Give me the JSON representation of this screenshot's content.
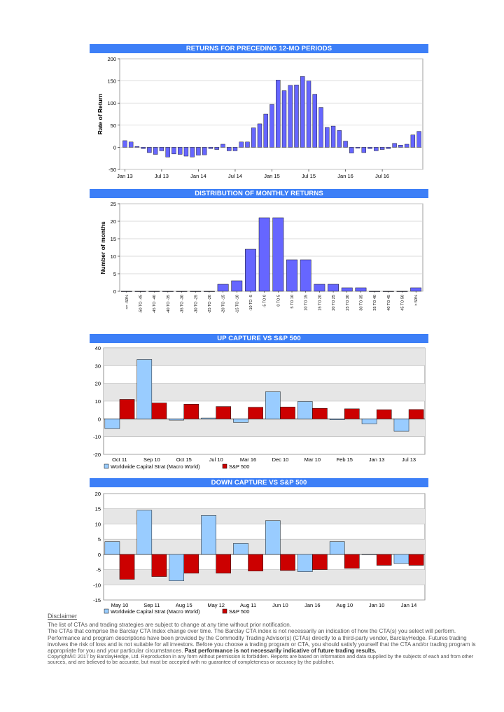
{
  "chart_data": [
    {
      "type": "bar",
      "title": "RETURNS FOR PRECEDING 12-MO PERIODS",
      "ylabel": "Rate of Return",
      "ylim": [
        -50,
        200
      ],
      "yticks": [
        -50,
        0,
        50,
        100,
        150,
        200
      ],
      "xticklabels": [
        "Jan 13",
        "Jul 13",
        "Jan 14",
        "Jul 14",
        "Jan 15",
        "Jul 15",
        "Jan 16",
        "Jul 16"
      ],
      "xtick_index": [
        0,
        6,
        12,
        18,
        24,
        30,
        36,
        42
      ],
      "values": [
        15,
        12,
        2,
        -3,
        -12,
        -16,
        -8,
        -22,
        -15,
        -16,
        -20,
        -22,
        -18,
        -17,
        -3,
        -5,
        7,
        -8,
        -8,
        12,
        12,
        44,
        53,
        75,
        97,
        152,
        128,
        140,
        141,
        160,
        150,
        120,
        90,
        45,
        48,
        38,
        14,
        -13,
        -2,
        -12,
        -3,
        -8,
        -5,
        -3,
        9,
        5,
        7,
        28,
        36
      ],
      "grid": true,
      "color": "#6666ff"
    },
    {
      "type": "bar",
      "title": "DISTRIBUTION OF MONTHLY RETURNS",
      "ylabel": "Number of months",
      "ylim": [
        0,
        25
      ],
      "yticks": [
        0,
        5,
        10,
        15,
        20,
        25
      ],
      "categories": [
        "<= -50%",
        "-50 TO -45",
        "-45 TO -40",
        "-40 TO -35",
        "-35 TO -30",
        "-30 TO -25",
        "-25 TO -20",
        "-20 TO -15",
        "-15 TO -10",
        "-10 TO -5",
        "-5 TO 0",
        "0 TO 5",
        "5 TO 10",
        "10 TO 15",
        "15 TO 20",
        "20 TO 25",
        "25 TO 30",
        "30 TO 35",
        "35 TO 40",
        "40 TO 45",
        "45 TO 50",
        "> 50%"
      ],
      "values": [
        0,
        0,
        0,
        0,
        0,
        0,
        0,
        2,
        3,
        12,
        21,
        21,
        9,
        9,
        2,
        2,
        1,
        1,
        0,
        0,
        0,
        1
      ],
      "grid": true,
      "color": "#6666ff"
    },
    {
      "type": "bar",
      "title": "UP CAPTURE VS S&P 500",
      "ylim": [
        -20,
        40
      ],
      "yticks": [
        -20,
        -10,
        0,
        10,
        20,
        30,
        40
      ],
      "categories": [
        "Oct 11",
        "Sep 10",
        "Oct 15",
        "Jul 10",
        "Mar 16",
        "Dec 10",
        "Mar 10",
        "Feb 15",
        "Jan 13",
        "Jul 13"
      ],
      "series": [
        {
          "name": "Worldwide Capital Strat (Macro World)",
          "color": "#99ccff",
          "values": [
            -5.5,
            33.5,
            -0.7,
            0.5,
            -2,
            15.3,
            9.8,
            -0.5,
            -2.8,
            -7
          ]
        },
        {
          "name": "S&P 500",
          "color": "#cc0000",
          "values": [
            11,
            9,
            8.3,
            7,
            6.6,
            6.7,
            6,
            5.7,
            5.2,
            5.3
          ]
        }
      ],
      "legend": "bottom-left"
    },
    {
      "type": "bar",
      "title": "DOWN CAPTURE VS S&P 500",
      "ylim": [
        -15,
        20
      ],
      "yticks": [
        -15,
        -10,
        -5,
        0,
        5,
        10,
        15,
        20
      ],
      "categories": [
        "May 10",
        "Sep 11",
        "Aug 15",
        "May 12",
        "Aug 11",
        "Jun 10",
        "Jan 16",
        "Aug 10",
        "Jan 10",
        "Jan 14"
      ],
      "series": [
        {
          "name": "Worldwide Capital Strat (Macro World)",
          "color": "#99ccff",
          "values": [
            4.2,
            14.5,
            -8.7,
            12.8,
            3.6,
            11.1,
            -5.7,
            4.2,
            0,
            -3
          ]
        },
        {
          "name": "S&P 500",
          "color": "#cc0000",
          "values": [
            -8.2,
            -7.3,
            -6.2,
            -6.2,
            -5.5,
            -5.3,
            -5,
            -4.6,
            -3.6,
            -3.6
          ]
        }
      ],
      "legend": "bottom-left"
    }
  ],
  "disclaimer": {
    "title": "Disclaimer",
    "p1": "The list of CTAs and trading strategies are subject to change at any time without prior notification.",
    "p2": "The CTAs that comprise the Barclay CTA Index change over time.  The Barclay CTA index is not necessarily an indication of how the CTA(s) you select will perform.",
    "p3": "Performance and program descriptions have been provided by the Commodity Trading Advisor(s) (CTAs) directly to a third-party vendor, BarclayHedge. Futures trading involves the risk of loss and is not suitable for all investors.  Before you choose a trading program or CTA, you should satisfy yourself that the CTA and/or trading program is appropriate for you and your particular circumstances.",
    "p3_bold": "Past performance is not necessarily indicative of future trading results.",
    "copyright": "CopyrightÂ©  2017 by BarclayHedge, Ltd. Reproduction in any form without permission is forbidden. Reports are based on information and data supplied by the subjects of each and from other sources, and are believed to be accurate, but must be accepted with no guarantee of completeness or accuracy by the publisher."
  }
}
